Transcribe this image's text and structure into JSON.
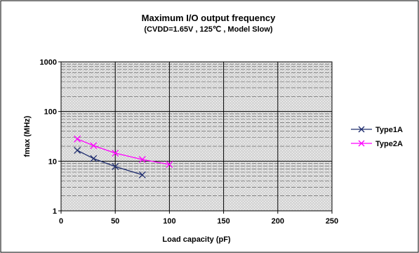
{
  "chart_data": {
    "type": "line",
    "title": "Maximum I/O output frequency",
    "subtitle": "(CVDD=1.65V , 125℃ , Model Slow)",
    "xlabel": "Load capacity (pF)",
    "ylabel": "fmax (MHz)",
    "xlim": [
      0,
      250
    ],
    "ylim": [
      1,
      1000
    ],
    "y_scale": "log",
    "x_ticks": [
      "0",
      "50",
      "100",
      "150",
      "200",
      "250"
    ],
    "y_ticks": [
      "1",
      "10",
      "100",
      "1000"
    ],
    "grid": true,
    "legend_position": "right",
    "series": [
      {
        "name": "Type1A",
        "color": "#1f2d6e",
        "marker": "x",
        "x": [
          15,
          30,
          50,
          75
        ],
        "y": [
          16.5,
          11.3,
          7.8,
          5.3
        ]
      },
      {
        "name": "Type2A",
        "color": "#ff00ff",
        "marker": "x",
        "x": [
          15,
          30,
          50,
          75,
          100
        ],
        "y": [
          28,
          20.5,
          14.5,
          10.8,
          8.6
        ]
      }
    ]
  }
}
